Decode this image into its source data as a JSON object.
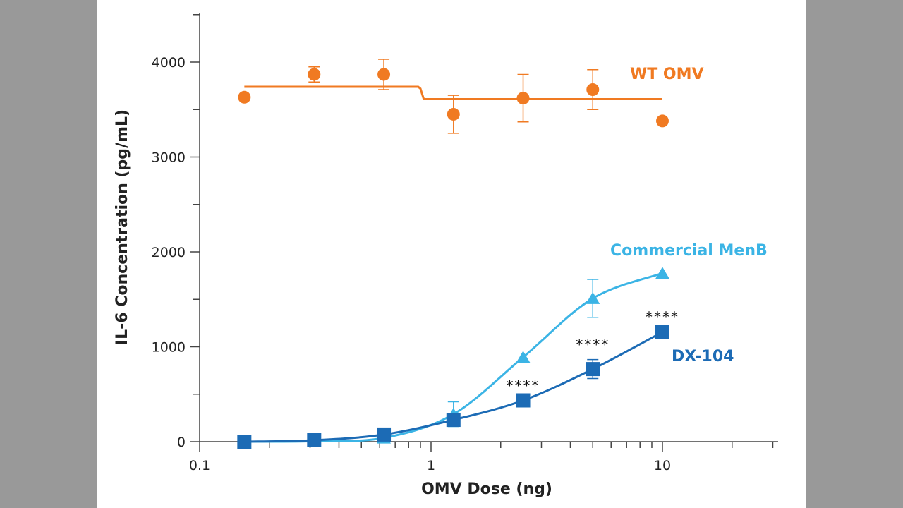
{
  "chart_data": {
    "type": "scatter",
    "xlabel": "OMV Dose (ng)",
    "ylabel": "IL-6 Concentration (pg/mL)",
    "xscale": "log",
    "xlim": [
      0.1,
      30
    ],
    "ylim": [
      0,
      4500
    ],
    "x_ticks": [
      0.1,
      1,
      10
    ],
    "x_tick_labels": [
      "0.1",
      "1",
      "10"
    ],
    "y_ticks": [
      0,
      1000,
      2000,
      3000,
      4000
    ],
    "y_tick_labels": [
      "0",
      "1000",
      "2000",
      "3000",
      "4000"
    ],
    "grid": false,
    "series": [
      {
        "name": "WT OMV",
        "color": "#f07a22",
        "marker": "circle",
        "x": [
          0.156,
          0.3125,
          0.625,
          1.25,
          2.5,
          5,
          10
        ],
        "y": [
          3630,
          3870,
          3870,
          3450,
          3620,
          3710,
          3380
        ],
        "err": [
          0,
          80,
          160,
          200,
          250,
          210,
          0
        ],
        "fit": [
          [
            0.156,
            3740
          ],
          [
            0.88,
            3740
          ],
          [
            0.9,
            3720
          ],
          [
            0.93,
            3610
          ],
          [
            10,
            3610
          ]
        ]
      },
      {
        "name": "Commercial MenB",
        "color": "#3bb4e5",
        "marker": "triangle",
        "x": [
          0.156,
          0.3125,
          0.625,
          1.25,
          2.5,
          5,
          10
        ],
        "y": [
          0,
          5,
          40,
          290,
          890,
          1510,
          1775
        ],
        "err": [
          0,
          0,
          0,
          130,
          0,
          200,
          0
        ]
      },
      {
        "name": "DX-104",
        "color": "#1c6bb5",
        "marker": "square",
        "x": [
          0.156,
          0.3125,
          0.625,
          1.25,
          2.5,
          5,
          10
        ],
        "y": [
          0,
          15,
          75,
          230,
          435,
          765,
          1155
        ],
        "err": [
          0,
          0,
          0,
          0,
          0,
          100,
          0
        ],
        "significance": [
          "",
          "",
          "",
          "",
          "****",
          "****",
          "****"
        ]
      }
    ]
  }
}
